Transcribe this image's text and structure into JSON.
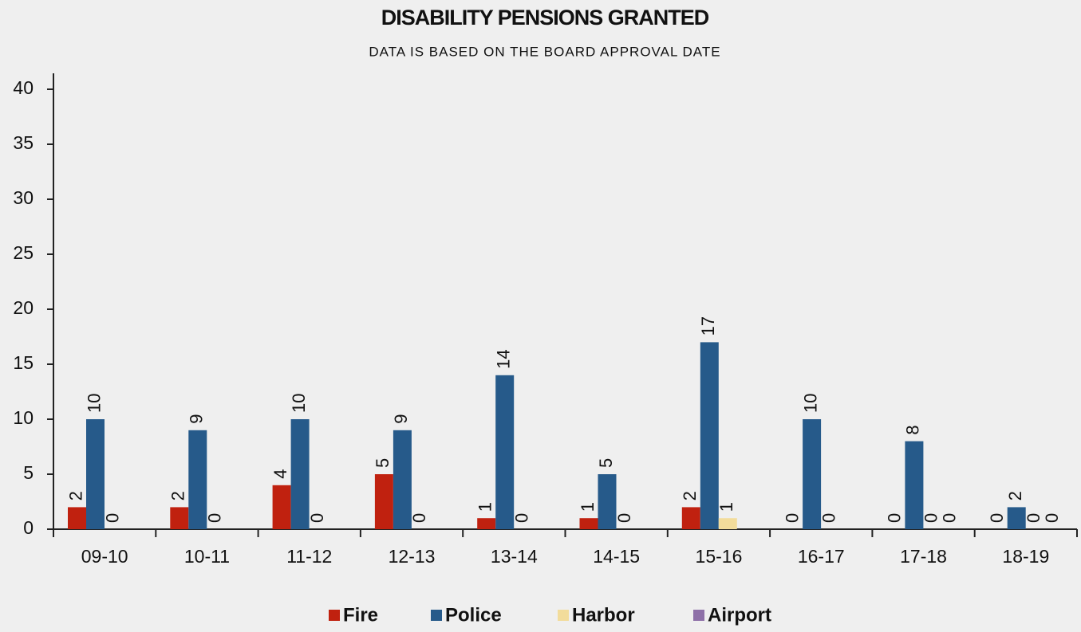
{
  "chart_data": {
    "type": "bar",
    "title": "DISABILITY PENSIONS GRANTED",
    "subtitle": "DATA IS BASED ON THE BOARD APPROVAL DATE",
    "categories": [
      "09-10",
      "10-11",
      "11-12",
      "12-13",
      "13-14",
      "14-15",
      "15-16",
      "16-17",
      "17-18",
      "18-19"
    ],
    "series": [
      {
        "name": "Fire",
        "color": "#c0210f",
        "values": [
          2,
          2,
          4,
          5,
          1,
          1,
          2,
          0,
          0,
          0
        ]
      },
      {
        "name": "Police",
        "color": "#265a8a",
        "values": [
          10,
          9,
          10,
          9,
          14,
          5,
          17,
          10,
          8,
          2
        ]
      },
      {
        "name": "Harbor",
        "color": "#f2dc9b",
        "values": [
          0,
          0,
          0,
          0,
          0,
          0,
          1,
          0,
          0,
          0
        ]
      },
      {
        "name": "Airport",
        "color": "#8e70a8",
        "values": [
          0,
          0,
          0,
          0,
          0,
          0,
          0,
          0,
          0,
          0
        ],
        "value_labels": [
          null,
          null,
          null,
          null,
          null,
          null,
          null,
          null,
          "0",
          "0"
        ]
      }
    ],
    "ylim": [
      0,
      40
    ],
    "yticks": [
      0,
      5,
      10,
      15,
      20,
      25,
      30,
      35,
      40
    ],
    "grid": false,
    "legend": "bottom"
  }
}
